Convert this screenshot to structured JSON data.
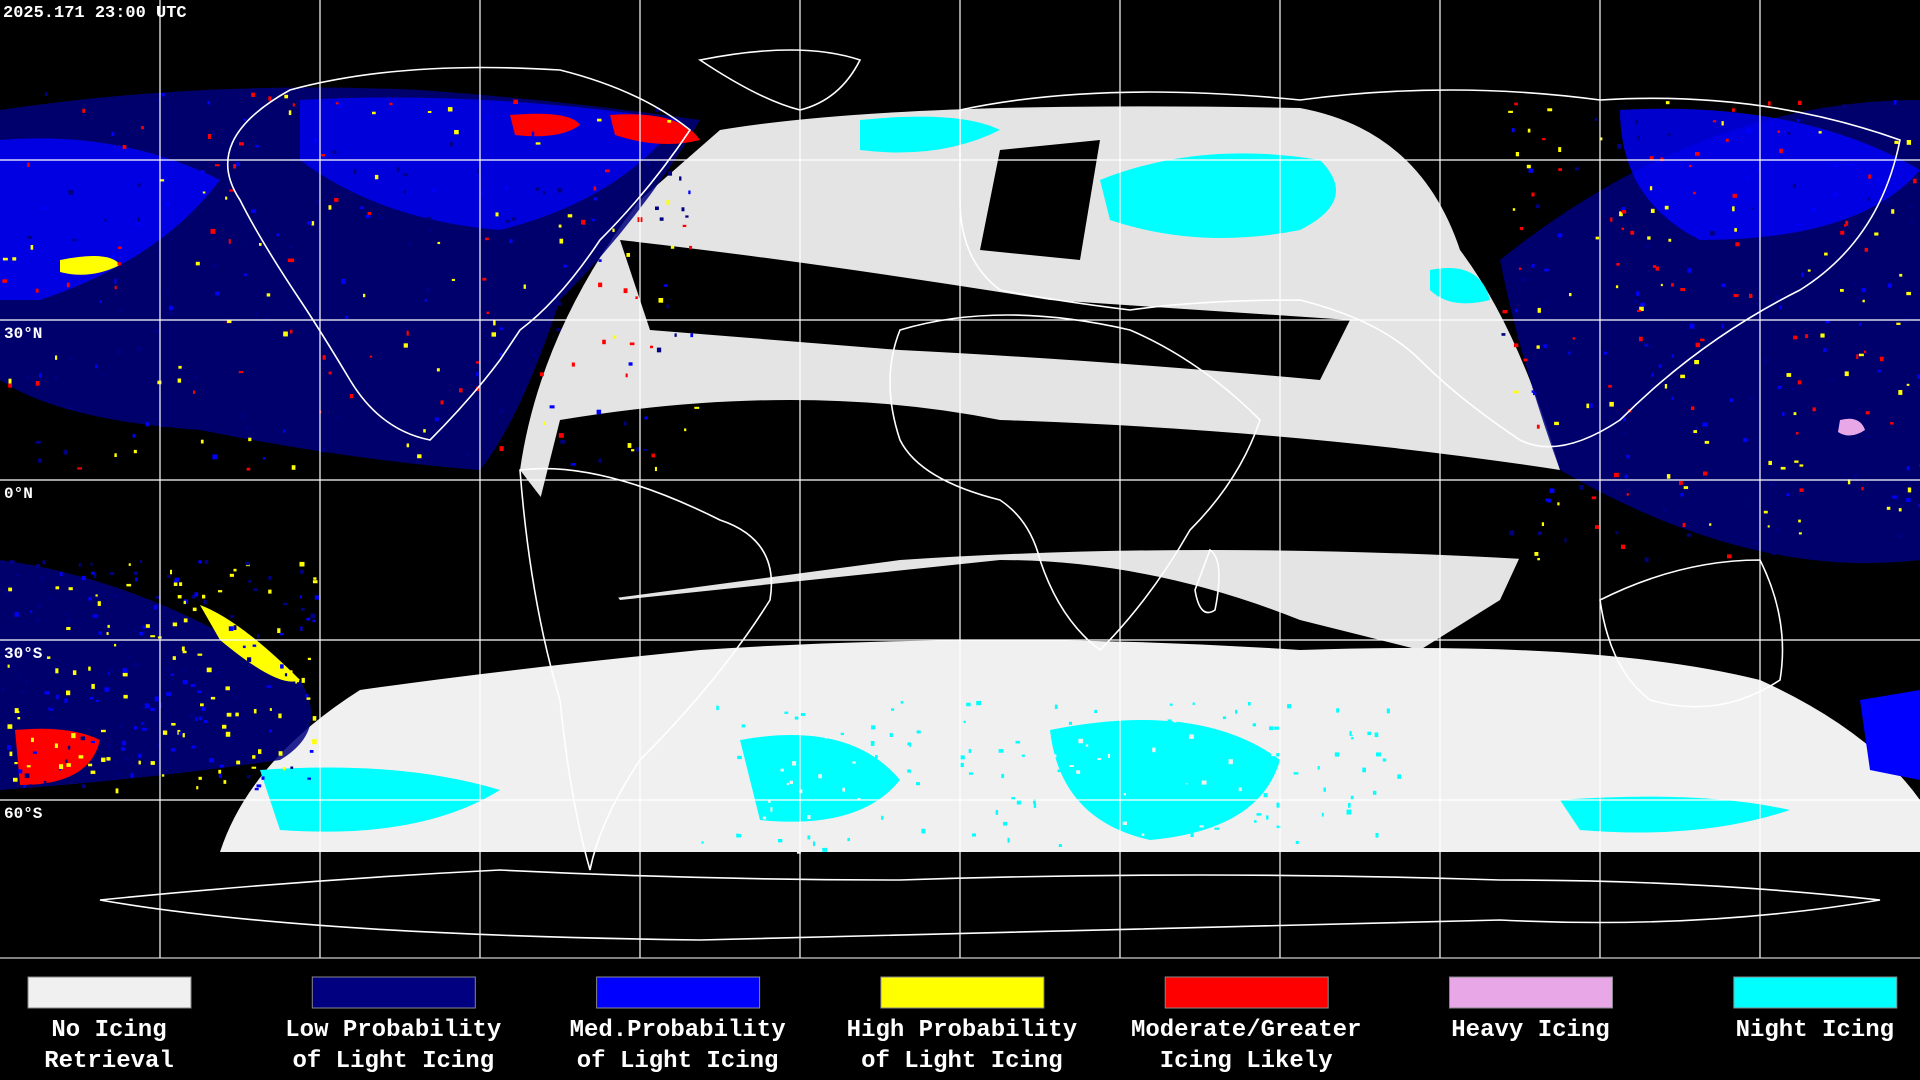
{
  "header": {
    "timestamp": "2025.171 23:00 UTC"
  },
  "map": {
    "lat_labels": [
      "30°N",
      "0°N",
      "30°S",
      "60°S"
    ]
  },
  "legend": {
    "items": [
      {
        "color": "#f0f0f0",
        "lines": [
          "No Icing",
          "Retrieval"
        ]
      },
      {
        "color": "#000080",
        "lines": [
          "Low Probability",
          "of Light Icing"
        ]
      },
      {
        "color": "#0000ff",
        "lines": [
          "Med.Probability",
          "of Light Icing"
        ]
      },
      {
        "color": "#ffff00",
        "lines": [
          "High Probability",
          "of Light Icing"
        ]
      },
      {
        "color": "#ff0000",
        "lines": [
          "Moderate/Greater",
          "Icing Likely"
        ]
      },
      {
        "color": "#e8a8e8",
        "lines": [
          "Heavy Icing"
        ]
      },
      {
        "color": "#00ffff",
        "lines": [
          "Night Icing"
        ]
      }
    ]
  }
}
